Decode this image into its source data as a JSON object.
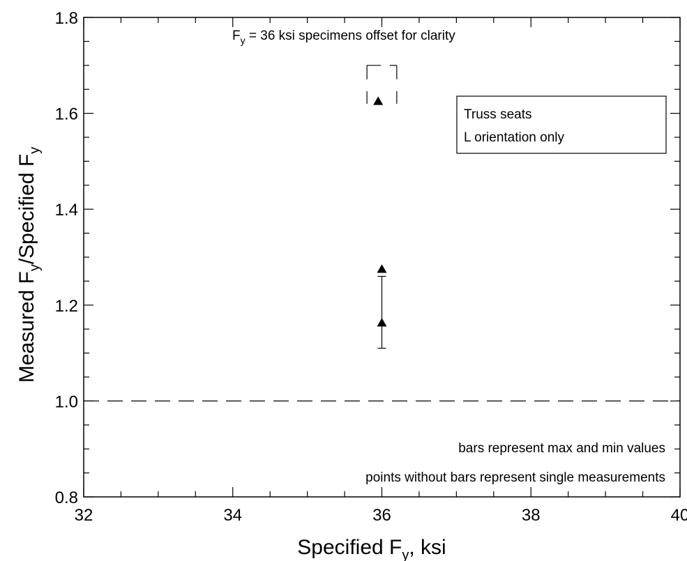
{
  "chart_data": {
    "type": "scatter",
    "xlabel": "Specified F",
    "xlabel_sub": "y",
    "xlabel_suffix": ", ksi",
    "ylabel_parts": [
      "Measured F",
      "y",
      "/Specified F",
      "y"
    ],
    "xlim": [
      32,
      40
    ],
    "ylim": [
      0.8,
      1.8
    ],
    "x_ticks": [
      32,
      34,
      36,
      38,
      40
    ],
    "x_tick_labels": [
      "32",
      "34",
      "36",
      "38",
      "40"
    ],
    "y_ticks": [
      0.8,
      1.0,
      1.2,
      1.4,
      1.6,
      1.8
    ],
    "y_tick_labels": [
      "0.8",
      "1.0",
      "1.2",
      "1.4",
      "1.6",
      "1.8"
    ],
    "grid": false,
    "reference_line": {
      "y": 1.0,
      "style": "dashed"
    },
    "series": [
      {
        "marker": "triangle",
        "color": "#000000",
        "points": [
          {
            "x": 36.0,
            "y": 1.275
          },
          {
            "x": 36.0,
            "y": 1.163
          },
          {
            "x": 35.95,
            "y": 1.625
          }
        ]
      }
    ],
    "error_bars": [
      {
        "x": 36.0,
        "ymin": 1.11,
        "ymax": 1.26
      }
    ],
    "bracket": {
      "x0": 35.8,
      "x1": 36.2,
      "y0": 1.62,
      "y1": 1.7
    },
    "annotations": {
      "top_prefix": "F",
      "top_sub": "y",
      "top_suffix": " = 36 ksi specimens offset for clarity",
      "note1": "bars represent max and min values",
      "note2": "points without bars represent single measurements"
    },
    "legend": {
      "position": "top-right",
      "line1": "Truss seats",
      "line2": "L orientation only"
    }
  }
}
